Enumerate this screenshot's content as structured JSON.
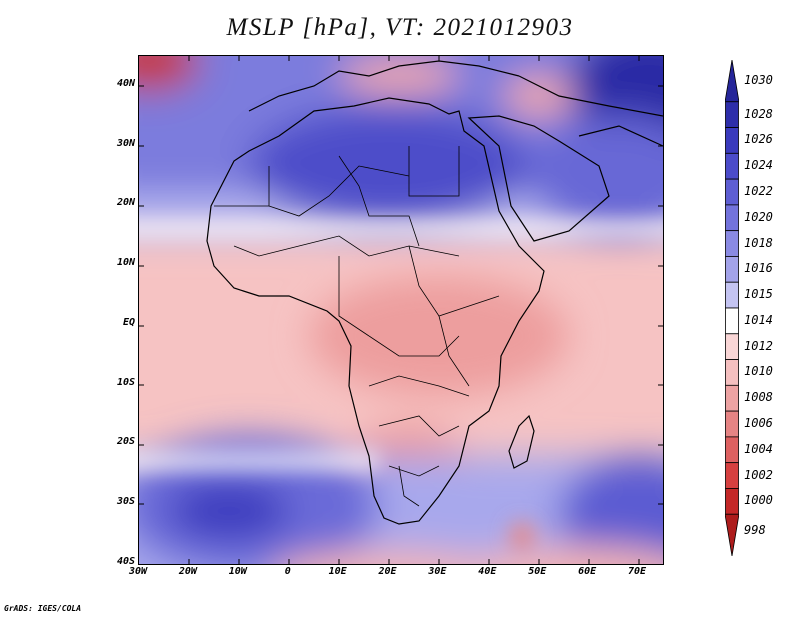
{
  "title": "MSLP [hPa], VT: 2021012903",
  "credit": "GrADS: IGES/COLA",
  "map": {
    "lon_range": [
      -30,
      75
    ],
    "lat_range": [
      -40,
      45
    ],
    "x_ticks": [
      "30W",
      "20W",
      "10W",
      "0",
      "10E",
      "20E",
      "30E",
      "40E",
      "50E",
      "60E",
      "70E"
    ],
    "y_ticks": [
      "40N",
      "30N",
      "20N",
      "10N",
      "EQ",
      "10S",
      "20S",
      "30S",
      "40S"
    ],
    "features": {
      "highs": [
        {
          "name": "south-atlantic-high",
          "lon": -10,
          "lat": -31,
          "value_hpa": 1026
        },
        {
          "name": "sahara-high",
          "lon": 20,
          "lat": 28,
          "value_hpa": 1024
        },
        {
          "name": "asia-high",
          "lon": 70,
          "lat": 39,
          "value_hpa": 1030
        },
        {
          "name": "indian-ocean-high",
          "lon": 72,
          "lat": -33,
          "value_hpa": 1022
        }
      ],
      "lows": [
        {
          "name": "central-africa-low",
          "lon": 25,
          "lat": 5,
          "value_hpa": 1008
        },
        {
          "name": "kalahari-low",
          "lon": 22,
          "lat": -22,
          "value_hpa": 1008
        },
        {
          "name": "nw-atlantic-low",
          "lon": -28,
          "lat": 44,
          "value_hpa": 1000
        },
        {
          "name": "madagascar-channel-low",
          "lon": 47,
          "lat": -37,
          "value_hpa": 1008
        }
      ]
    }
  },
  "colorbar": {
    "levels": [
      1030,
      1028,
      1026,
      1024,
      1022,
      1020,
      1018,
      1016,
      1015,
      1014,
      1012,
      1010,
      1008,
      1006,
      1004,
      1002,
      1000,
      998
    ],
    "colors": [
      "#252599",
      "#2e2eaa",
      "#3a3abd",
      "#4b4bca",
      "#5e5ed3",
      "#7373dc",
      "#8a8ae3",
      "#a3a3ea",
      "#c4c4f2",
      "#ffffff",
      "#f9d6d6",
      "#f5c0c0",
      "#eda3a3",
      "#e68484",
      "#de6161",
      "#d64040",
      "#c42828",
      "#ad1c1c"
    ]
  }
}
